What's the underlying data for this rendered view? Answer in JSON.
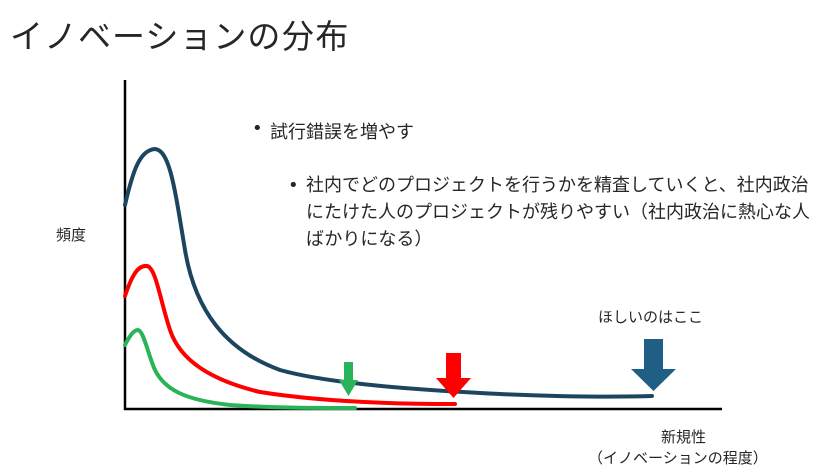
{
  "title": "イノベーションの分布",
  "bullets": {
    "main": "試行錯誤を増やす",
    "sub": "社内でどのプロジェクトを行うかを精査していくと、社内政治にたけた人のプロジェクトが残りやすい（社内政治に熱心な人ばかりになる）"
  },
  "axis": {
    "y_label": "頻度",
    "x_label_line1": "新規性",
    "x_label_line2": "（イノベーションの程度）"
  },
  "annotation": "ほしいのはここ",
  "colors": {
    "navy": "#1e4560",
    "red": "#ff0000",
    "green": "#2ab45a",
    "arrow_blue": "#1f5f85",
    "axis": "#000000"
  }
}
